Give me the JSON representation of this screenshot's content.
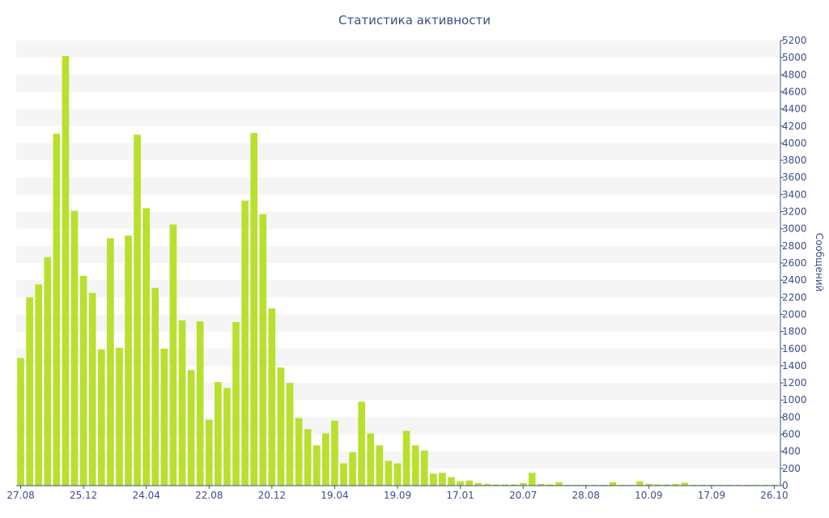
{
  "chart_data": {
    "type": "bar",
    "title": "Статистика активности",
    "ylabel": "Сообщений",
    "xlabel": "",
    "ylim": [
      0,
      5200
    ],
    "y_ticks": [
      0,
      200,
      400,
      600,
      800,
      1000,
      1200,
      1400,
      1600,
      1800,
      2000,
      2200,
      2400,
      2600,
      2800,
      3000,
      3200,
      3400,
      3600,
      3800,
      4000,
      4200,
      4400,
      4600,
      4800,
      5000,
      5200
    ],
    "x_tick_labels": [
      {
        "index": 0,
        "label": "27.08"
      },
      {
        "index": 7,
        "label": "25.12"
      },
      {
        "index": 14,
        "label": "24.04"
      },
      {
        "index": 21,
        "label": "22.08"
      },
      {
        "index": 28,
        "label": "20.12"
      },
      {
        "index": 35,
        "label": "19.04"
      },
      {
        "index": 42,
        "label": "19.09"
      },
      {
        "index": 49,
        "label": "17.01"
      },
      {
        "index": 56,
        "label": "20.07"
      },
      {
        "index": 63,
        "label": "28.08"
      },
      {
        "index": 70,
        "label": "10.09"
      },
      {
        "index": 77,
        "label": "17.09"
      },
      {
        "index": 84,
        "label": "26.10"
      }
    ],
    "values": [
      1490,
      2200,
      2350,
      2670,
      4110,
      5020,
      3210,
      2450,
      2250,
      1590,
      2890,
      1610,
      2920,
      4100,
      3240,
      2310,
      1600,
      3050,
      1930,
      1350,
      1920,
      770,
      1210,
      1140,
      1910,
      3330,
      4120,
      3170,
      2070,
      1380,
      1200,
      790,
      660,
      470,
      610,
      760,
      260,
      390,
      980,
      610,
      470,
      290,
      260,
      640,
      470,
      410,
      140,
      150,
      100,
      50,
      60,
      30,
      20,
      15,
      15,
      15,
      30,
      150,
      20,
      15,
      40,
      10,
      10,
      10,
      10,
      10,
      40,
      10,
      10,
      50,
      20,
      15,
      15,
      20,
      35,
      10,
      10,
      10,
      10,
      10,
      10,
      10,
      10,
      10,
      10
    ]
  },
  "colors": {
    "bar": "#b8e02e",
    "text": "#3b4f86",
    "grid_band": "#f5f5f5",
    "axis": "#3b4f86"
  }
}
